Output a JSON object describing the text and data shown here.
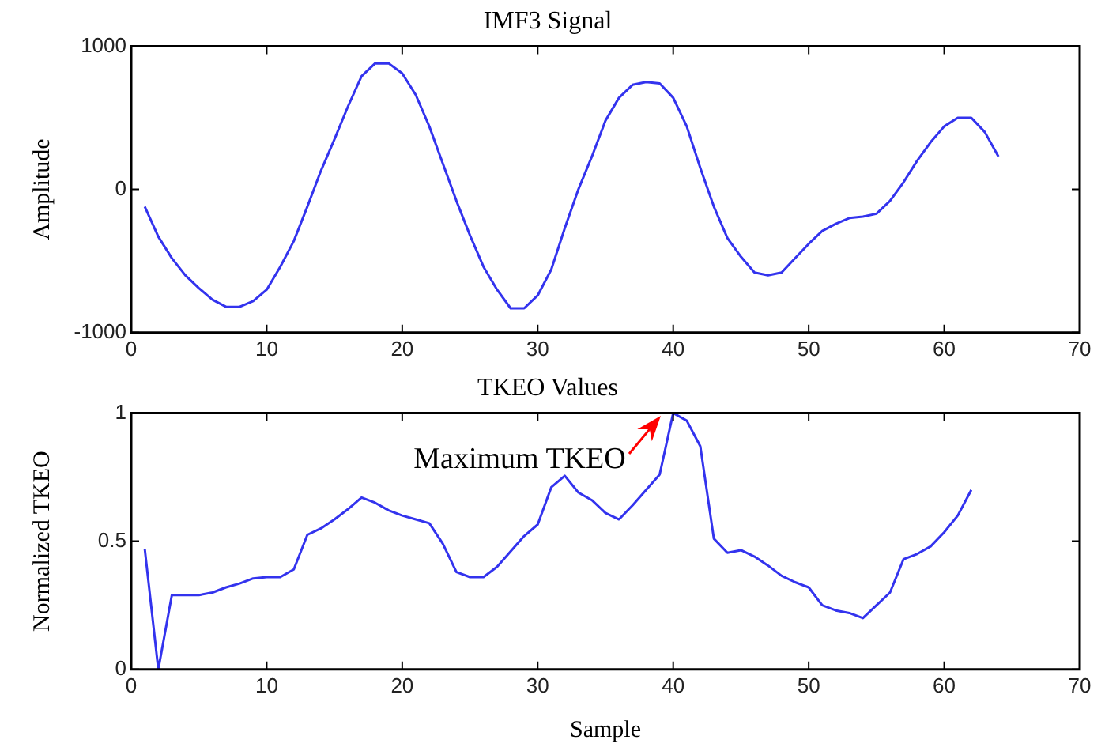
{
  "chart_data": [
    {
      "type": "line",
      "title": "IMF3 Signal",
      "ylabel": "Amplitude",
      "x": [
        1,
        2,
        3,
        4,
        5,
        6,
        7,
        8,
        9,
        10,
        11,
        12,
        13,
        14,
        15,
        16,
        17,
        18,
        19,
        20,
        21,
        22,
        23,
        24,
        25,
        26,
        27,
        28,
        29,
        30,
        31,
        32,
        33,
        34,
        35,
        36,
        37,
        38,
        39,
        40,
        41,
        42,
        43,
        44,
        45,
        46,
        47,
        48,
        49,
        50,
        51,
        52,
        53,
        54,
        55,
        56,
        57,
        58,
        59,
        60,
        61,
        62,
        63,
        64
      ],
      "series": [
        {
          "color": "#3333ee",
          "values": [
            -120,
            -330,
            -480,
            -600,
            -690,
            -770,
            -820,
            -820,
            -780,
            -700,
            -540,
            -360,
            -120,
            130,
            350,
            580,
            790,
            880,
            880,
            810,
            660,
            440,
            180,
            -80,
            -320,
            -540,
            -700,
            -830,
            -830,
            -740,
            -560,
            -270,
            0,
            230,
            480,
            640,
            730,
            750,
            740,
            640,
            440,
            150,
            -120,
            -340,
            -470,
            -580,
            -600,
            -580,
            -480,
            -380,
            -290,
            -240,
            -200,
            -190,
            -170,
            -80,
            50,
            200,
            330,
            440,
            500,
            500,
            400,
            230
          ]
        }
      ],
      "xlim": [
        0,
        70
      ],
      "xticks": [
        0,
        10,
        20,
        30,
        40,
        50,
        60,
        70
      ],
      "ylim": [
        -1000,
        1000
      ],
      "yticks": [
        -1000,
        0,
        1000
      ],
      "grid": false,
      "legend": false,
      "marker": "none",
      "line_style": "solid"
    },
    {
      "type": "line",
      "title": "TKEO Values",
      "xlabel": "Sample",
      "ylabel": "Normalized TKEO",
      "x": [
        1,
        2,
        3,
        4,
        5,
        6,
        7,
        8,
        9,
        10,
        11,
        12,
        13,
        14,
        15,
        16,
        17,
        18,
        19,
        20,
        21,
        22,
        23,
        24,
        25,
        26,
        27,
        28,
        29,
        30,
        31,
        32,
        33,
        34,
        35,
        36,
        37,
        38,
        39,
        40,
        41,
        42,
        43,
        44,
        45,
        46,
        47,
        48,
        49,
        50,
        51,
        52,
        53,
        54,
        55,
        56,
        57,
        58,
        59,
        60,
        61,
        62
      ],
      "series": [
        {
          "color": "#3333ee",
          "values": [
            0.47,
            0,
            0.29,
            0.29,
            0.29,
            0.3,
            0.32,
            0.335,
            0.355,
            0.36,
            0.36,
            0.39,
            0.525,
            0.55,
            0.585,
            0.625,
            0.67,
            0.65,
            0.62,
            0.6,
            0.585,
            0.57,
            0.49,
            0.38,
            0.36,
            0.36,
            0.4,
            0.46,
            0.52,
            0.565,
            0.71,
            0.755,
            0.69,
            0.66,
            0.61,
            0.585,
            0.64,
            0.7,
            0.76,
            1,
            0.97,
            0.87,
            0.51,
            0.455,
            0.465,
            0.44,
            0.405,
            0.365,
            0.34,
            0.32,
            0.25,
            0.23,
            0.22,
            0.2,
            0.25,
            0.3,
            0.43,
            0.45,
            0.48,
            0.535,
            0.6,
            0.7
          ]
        }
      ],
      "xlim": [
        0,
        70
      ],
      "xticks": [
        0,
        10,
        20,
        30,
        40,
        50,
        60,
        70
      ],
      "ylim": [
        0,
        1
      ],
      "yticks": [
        0,
        0.5,
        1
      ],
      "grid": false,
      "legend": false,
      "marker": "none",
      "line_style": "solid",
      "annotations": [
        {
          "text": "Maximum TKEO",
          "x": 40,
          "y": 1
        }
      ]
    }
  ]
}
